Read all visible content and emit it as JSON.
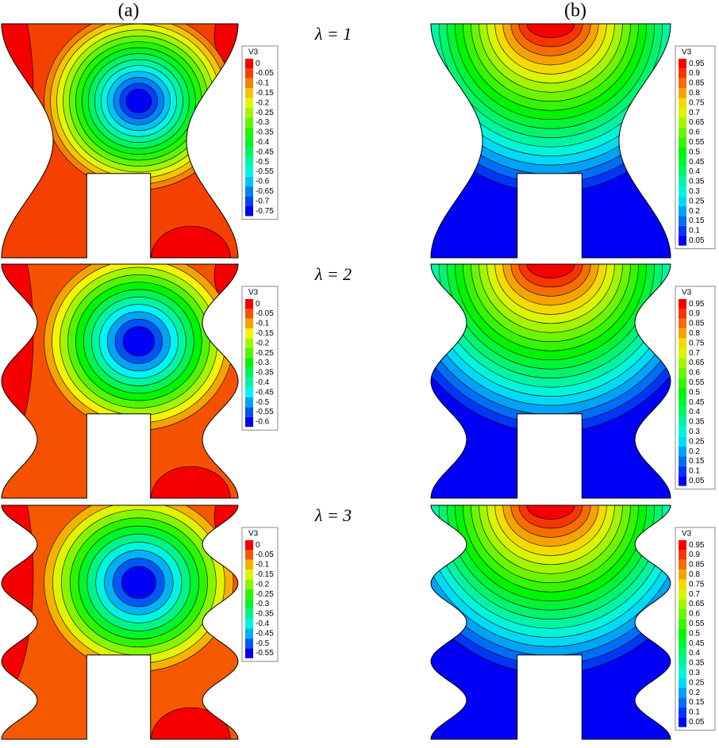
{
  "columns": [
    "(a)",
    "(b)"
  ],
  "rows": [
    {
      "label": "λ = 1",
      "legend_a": {
        "title": "V3",
        "labels": [
          "0",
          "-0.05",
          "-0.1",
          "-0.15",
          "-0.2",
          "-0.25",
          "-0.3",
          "-0.35",
          "-0.4",
          "-0.45",
          "-0.5",
          "-0.55",
          "-0.6",
          "-0.65",
          "-0.7",
          "-0.75"
        ]
      },
      "legend_b": {
        "title": "V3",
        "labels": [
          "0.95",
          "0.9",
          "0.85",
          "0.8",
          "0.75",
          "0.7",
          "0.65",
          "0.6",
          "0.55",
          "0.5",
          "0.45",
          "0.4",
          "0.35",
          "0.3",
          "0.25",
          "0.2",
          "0.15",
          "0.1",
          "0.05"
        ]
      }
    },
    {
      "label": "λ = 2",
      "legend_a": {
        "title": "V3",
        "labels": [
          "0",
          "-0.05",
          "-0.1",
          "-0.15",
          "-0.2",
          "-0.25",
          "-0.3",
          "-0.35",
          "-0.4",
          "-0.45",
          "-0.5",
          "-0.55",
          "-0.6"
        ]
      },
      "legend_b": {
        "title": "V3",
        "labels": [
          "0.95",
          "0.9",
          "0.85",
          "0.8",
          "0.75",
          "0.7",
          "0.65",
          "0.6",
          "0.55",
          "0.5",
          "0.45",
          "0.4",
          "0.35",
          "0.3",
          "0.25",
          "0.2",
          "0.15",
          "0.1",
          "0.05"
        ]
      }
    },
    {
      "label": "λ = 3",
      "legend_a": {
        "title": "V3",
        "labels": [
          "0",
          "-0.05",
          "-0.1",
          "-0.15",
          "-0.2",
          "-0.25",
          "-0.3",
          "-0.35",
          "-0.4",
          "-0.45",
          "-0.5",
          "-0.55"
        ]
      },
      "legend_b": {
        "title": "V3",
        "labels": [
          "0.95",
          "0.9",
          "0.85",
          "0.8",
          "0.75",
          "0.7",
          "0.65",
          "0.6",
          "0.55",
          "0.5",
          "0.45",
          "0.4",
          "0.35",
          "0.3",
          "0.25",
          "0.2",
          "0.15",
          "0.1",
          "0.05"
        ]
      }
    }
  ]
}
